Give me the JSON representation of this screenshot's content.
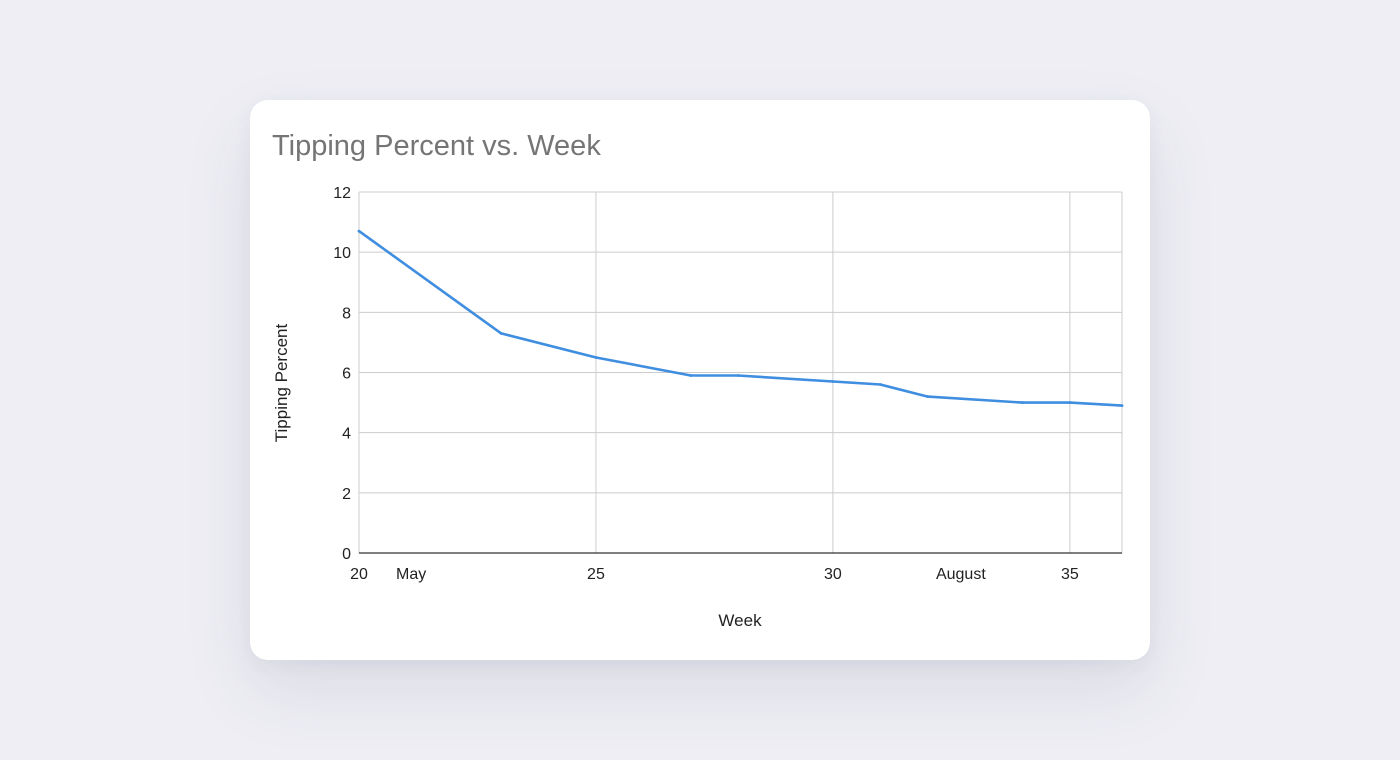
{
  "chart_data": {
    "type": "line",
    "title": "Tipping Percent vs. Week",
    "xlabel": "Week",
    "ylabel": "Tipping Percent",
    "xlim": [
      20,
      36.1
    ],
    "ylim": [
      0,
      12
    ],
    "x_ticks": [
      {
        "value": 20,
        "label": "20",
        "grid": true
      },
      {
        "value": 21.1,
        "label": "May",
        "grid": false
      },
      {
        "value": 25,
        "label": "25",
        "grid": true
      },
      {
        "value": 30,
        "label": "30",
        "grid": true
      },
      {
        "value": 32.7,
        "label": "August",
        "grid": false
      },
      {
        "value": 35,
        "label": "35",
        "grid": true
      }
    ],
    "y_ticks": [
      0,
      2,
      4,
      6,
      8,
      10,
      12
    ],
    "grid": true,
    "series": [
      {
        "color": "#3f8ee0",
        "x": [
          20,
          23,
          25,
          27,
          28,
          30,
          31,
          32,
          34,
          35,
          36.1
        ],
        "y": [
          10.7,
          7.3,
          6.5,
          5.9,
          5.9,
          5.7,
          5.6,
          5.2,
          5.0,
          5.0,
          4.9
        ]
      }
    ]
  }
}
